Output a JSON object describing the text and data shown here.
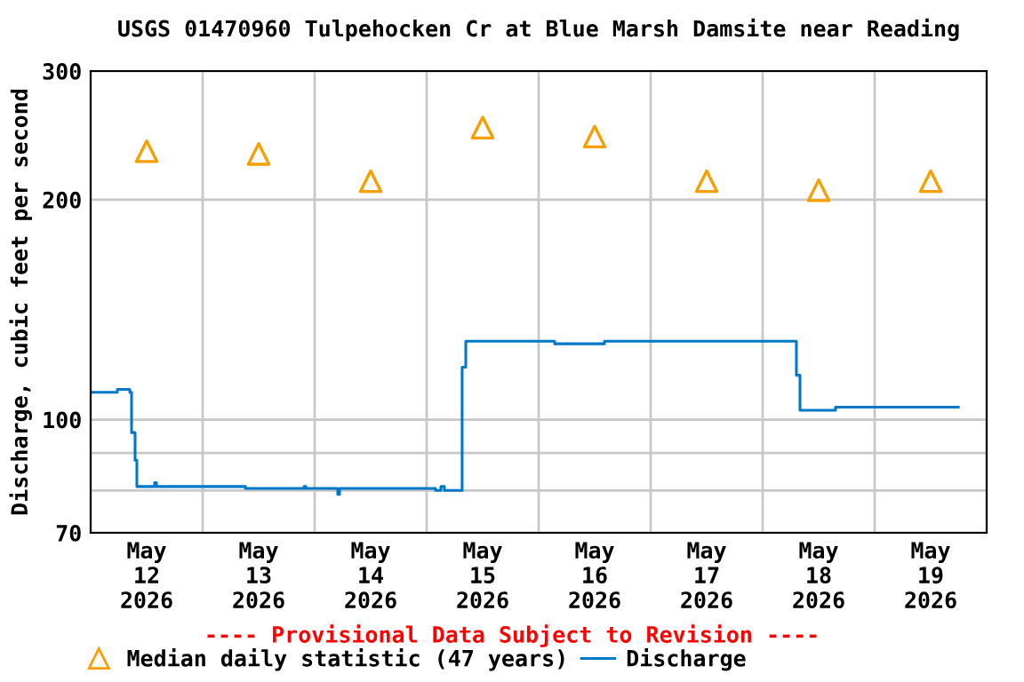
{
  "chart_data": {
    "type": "step",
    "title": "USGS 01470960 Tulpehocken Cr at Blue Marsh Damsite near Reading",
    "ylabel": "Discharge, cubic feet per second",
    "annotations": [
      "---- Provisional Data Subject to Revision ----"
    ],
    "series": [
      {
        "name": "Median daily statistic (47 years)",
        "type": "scatter",
        "marker": "triangle",
        "color": "#f5a000",
        "x": [
          "2026-05-12T12:00",
          "2026-05-13T12:00",
          "2026-05-14T12:00",
          "2026-05-15T12:00",
          "2026-05-16T12:00",
          "2026-05-17T12:00",
          "2026-05-18T12:00",
          "2026-05-19T12:00"
        ],
        "values": [
          233,
          231,
          212,
          251,
          244,
          212,
          206,
          212
        ]
      },
      {
        "name": "Discharge",
        "color": "#0078c8",
        "x": [
          "2026-05-12T00:00",
          "2026-05-12T05:43",
          "2026-05-12T08:23",
          "2026-05-12T08:46",
          "2026-05-12T09:31",
          "2026-05-12T09:54",
          "2026-05-12T13:43",
          "2026-05-12T14:06",
          "2026-05-12T18:40",
          "2026-05-13T09:09",
          "2026-05-13T21:43",
          "2026-05-13T22:06",
          "2026-05-14T04:57",
          "2026-05-14T05:20",
          "2026-05-15T01:54",
          "2026-05-15T03:03",
          "2026-05-15T03:48",
          "2026-05-15T07:14",
          "2026-05-15T07:36",
          "2026-05-15T08:23",
          "2026-05-16T03:26",
          "2026-05-16T14:06",
          "2026-05-17T17:09",
          "2026-05-18T06:51",
          "2026-05-18T07:14",
          "2026-05-18T08:00",
          "2026-05-18T15:36",
          "2026-05-19T17:55"
        ],
        "values": [
          109,
          110,
          109,
          96,
          88,
          81,
          82,
          81,
          81,
          80.5,
          81,
          80.5,
          79,
          80.5,
          80,
          81,
          80,
          80,
          118,
          128,
          127,
          128,
          128,
          128,
          115,
          103,
          104,
          104
        ]
      }
    ],
    "xlim": [
      "2026-05-12T00:00",
      "2026-05-20T00:00"
    ],
    "xticks": [
      {
        "value": "2026-05-12T12:00",
        "label": "May\n12\n2026"
      },
      {
        "value": "2026-05-13T12:00",
        "label": "May\n13\n2026"
      },
      {
        "value": "2026-05-14T12:00",
        "label": "May\n14\n2026"
      },
      {
        "value": "2026-05-15T12:00",
        "label": "May\n15\n2026"
      },
      {
        "value": "2026-05-16T12:00",
        "label": "May\n16\n2026"
      },
      {
        "value": "2026-05-17T12:00",
        "label": "May\n17\n2026"
      },
      {
        "value": "2026-05-18T12:00",
        "label": "May\n18\n2026"
      },
      {
        "value": "2026-05-19T12:00",
        "label": "May\n19\n2026"
      },
      {
        "value": "2026-05-13T00:00",
        "label": null
      },
      {
        "value": "2026-05-14T00:00",
        "label": null
      },
      {
        "value": "2026-05-15T00:00",
        "label": null
      },
      {
        "value": "2026-05-16T00:00",
        "label": null
      },
      {
        "value": "2026-05-17T00:00",
        "label": null
      },
      {
        "value": "2026-05-18T00:00",
        "label": null
      },
      {
        "value": "2026-05-19T00:00",
        "label": null
      }
    ],
    "log": true,
    "ylim": [
      70,
      300
    ],
    "yticks": [
      70,
      {
        "value": 80,
        "label": null
      },
      {
        "value": 90,
        "label": null
      },
      100,
      200,
      300
    ],
    "grid": true,
    "legend": "bottom",
    "line_style": "solid"
  }
}
